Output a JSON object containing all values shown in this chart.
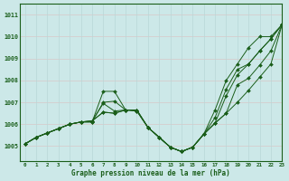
{
  "xlabel": "Graphe pression niveau de la mer (hPa)",
  "ylim": [
    1004.3,
    1011.5
  ],
  "xlim": [
    -0.5,
    23
  ],
  "yticks": [
    1005,
    1006,
    1007,
    1008,
    1009,
    1010,
    1011
  ],
  "xticks": [
    0,
    1,
    2,
    3,
    4,
    5,
    6,
    7,
    8,
    9,
    10,
    11,
    12,
    13,
    14,
    15,
    16,
    17,
    18,
    19,
    20,
    21,
    22,
    23
  ],
  "bg_color": "#cce8e8",
  "line_color": "#1a5e1a",
  "grid_color_h": "#d8c8c8",
  "grid_color_v": "#b8d8d8",
  "lines": [
    [
      1005.1,
      1005.4,
      1005.6,
      1005.8,
      1006.0,
      1006.1,
      1006.1,
      1007.5,
      1007.5,
      1006.65,
      1006.6,
      1005.85,
      1005.4,
      1004.95,
      1004.75,
      1004.95,
      1005.55,
      1006.65,
      1008.0,
      1008.75,
      1009.5,
      1010.0,
      1010.0,
      1010.55
    ],
    [
      1005.1,
      1005.4,
      1005.6,
      1005.8,
      1006.0,
      1006.1,
      1006.1,
      1007.0,
      1007.05,
      1006.65,
      1006.6,
      1005.85,
      1005.4,
      1004.95,
      1004.75,
      1004.95,
      1005.55,
      1006.3,
      1007.6,
      1008.5,
      1008.75,
      1009.35,
      1009.9,
      1010.55
    ],
    [
      1005.1,
      1005.4,
      1005.6,
      1005.8,
      1006.0,
      1006.1,
      1006.15,
      1006.95,
      1006.6,
      1006.65,
      1006.65,
      1005.85,
      1005.4,
      1004.95,
      1004.75,
      1004.95,
      1005.55,
      1006.05,
      1007.3,
      1008.25,
      1008.75,
      1009.35,
      1009.9,
      1010.55
    ],
    [
      1005.1,
      1005.4,
      1005.6,
      1005.8,
      1006.0,
      1006.1,
      1006.15,
      1006.55,
      1006.5,
      1006.65,
      1006.65,
      1005.85,
      1005.4,
      1004.95,
      1004.75,
      1004.95,
      1005.55,
      1006.05,
      1006.5,
      1007.8,
      1008.1,
      1008.7,
      1009.35,
      1010.55
    ],
    [
      1005.1,
      1005.4,
      1005.6,
      1005.8,
      1006.0,
      1006.1,
      1006.15,
      1006.55,
      1006.5,
      1006.65,
      1006.65,
      1005.85,
      1005.4,
      1004.95,
      1004.75,
      1004.95,
      1005.55,
      1006.05,
      1006.5,
      1007.0,
      1007.55,
      1008.15,
      1008.75,
      1010.55
    ]
  ]
}
